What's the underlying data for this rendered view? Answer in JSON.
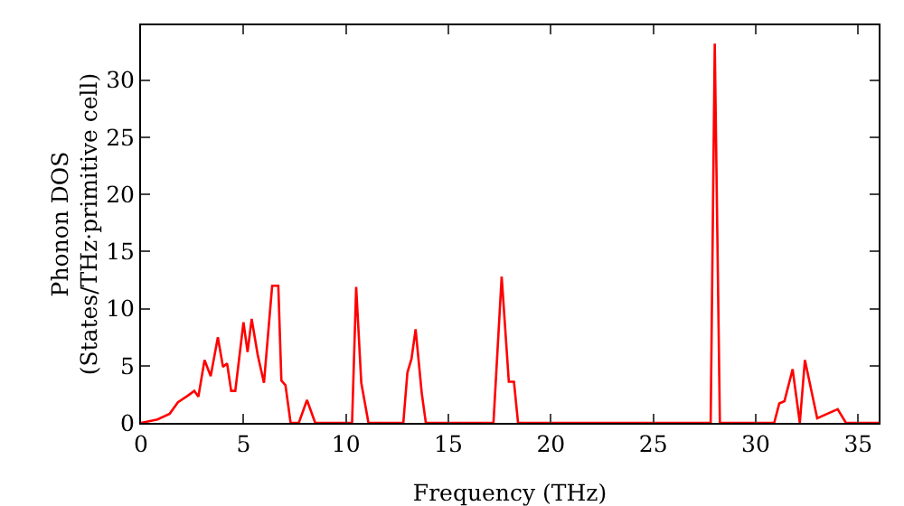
{
  "chart_data": {
    "type": "line",
    "xlabel": "Frequency (THz)",
    "ylabel": "Phonon DOS\n(States/THz·primitive cell)",
    "xlim": [
      0,
      36
    ],
    "ylim": [
      0,
      34.8
    ],
    "xticks": [
      0,
      5,
      10,
      15,
      20,
      25,
      30,
      35
    ],
    "yticks": [
      0,
      5,
      10,
      15,
      20,
      25,
      30
    ],
    "grid": false,
    "marker": "none",
    "line_style": "solid",
    "series": [
      {
        "color": "#ff0000",
        "x": [
          0,
          0.8,
          1.4,
          1.8,
          2.3,
          2.6,
          2.8,
          3.1,
          3.4,
          3.75,
          4.0,
          4.2,
          4.4,
          4.6,
          5.0,
          5.2,
          5.4,
          5.7,
          6.0,
          6.4,
          6.7,
          6.85,
          7.05,
          7.3,
          7.7,
          8.1,
          8.5,
          10.1,
          10.3,
          10.5,
          10.75,
          11.1,
          12.8,
          13.0,
          13.2,
          13.4,
          13.7,
          13.9,
          17.2,
          17.6,
          17.95,
          18.2,
          18.4,
          27.8,
          28.0,
          28.25,
          30.9,
          31.15,
          31.4,
          31.8,
          32.15,
          32.4,
          33.0,
          33.5,
          34.0,
          34.4,
          36.0
        ],
        "values": [
          0,
          0.3,
          0.8,
          1.8,
          2.4,
          2.8,
          2.3,
          5.5,
          4.1,
          7.5,
          4.9,
          5.2,
          2.8,
          2.8,
          8.8,
          6.2,
          9.1,
          5.9,
          3.5,
          12.0,
          12.0,
          3.7,
          3.3,
          0,
          0,
          2.0,
          0,
          0,
          0,
          11.9,
          3.5,
          0,
          0,
          4.4,
          5.6,
          8.2,
          2.6,
          0,
          0,
          12.8,
          3.6,
          3.6,
          0,
          0,
          33.2,
          0,
          0,
          1.7,
          1.9,
          4.7,
          0,
          5.5,
          0.4,
          0.8,
          1.2,
          0,
          0
        ]
      }
    ]
  }
}
